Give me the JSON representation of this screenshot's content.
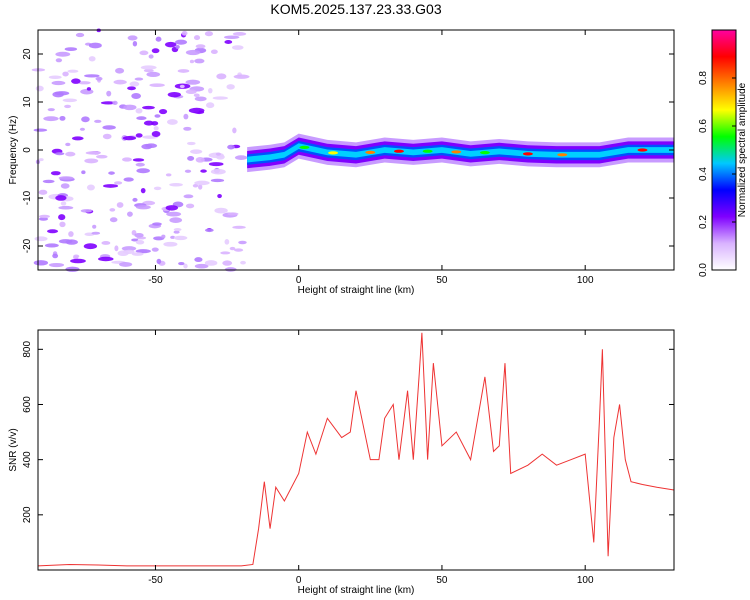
{
  "title": "KOM5.2025.137.23.33.G03",
  "chart_data": [
    {
      "type": "heatmap",
      "xlabel": "Height of straight line (km)",
      "ylabel": "Frequency (Hz)",
      "xlim": [
        -91,
        131
      ],
      "ylim": [
        -25,
        25
      ],
      "xticks": [
        -50,
        0,
        50,
        100
      ],
      "yticks": [
        -20,
        -10,
        0,
        10,
        20
      ],
      "colorbar": {
        "label": "Normalized spectral amplitude",
        "range": [
          0,
          1
        ],
        "ticks": [
          "0.0",
          "0.2",
          "0.4",
          "0.6",
          "0.8"
        ],
        "colors": [
          "#ffffff",
          "#d9b3ff",
          "#7f00ff",
          "#0000ff",
          "#00c8ff",
          "#00ff00",
          "#ffff00",
          "#ff8000",
          "#ff0000",
          "#ff00a0"
        ]
      },
      "ridge": {
        "x": [
          -18,
          -10,
          -5,
          0,
          10,
          20,
          30,
          40,
          50,
          60,
          70,
          80,
          90,
          100,
          105,
          110,
          115,
          120,
          131
        ],
        "y": [
          -2,
          -1.5,
          -1,
          0.8,
          -0.5,
          -1,
          0,
          -0.5,
          0,
          -0.8,
          -0.3,
          -0.8,
          -1,
          -1,
          -1,
          -0.5,
          0,
          0,
          0
        ]
      }
    },
    {
      "type": "line",
      "xlabel": "Height of straight line (km)",
      "ylabel": "SNR (v/v)",
      "xlim": [
        -91,
        131
      ],
      "ylim": [
        0,
        870
      ],
      "xticks": [
        -50,
        0,
        50,
        100
      ],
      "yticks": [
        200,
        400,
        600,
        800
      ],
      "color": "#ee3333",
      "x": [
        -91,
        -80,
        -70,
        -60,
        -50,
        -40,
        -30,
        -20,
        -16,
        -14,
        -12,
        -10,
        -8,
        -5,
        0,
        3,
        6,
        10,
        15,
        18,
        20,
        25,
        28,
        30,
        33,
        35,
        38,
        40,
        42,
        43,
        45,
        47,
        50,
        55,
        60,
        65,
        68,
        70,
        72,
        74,
        80,
        85,
        90,
        95,
        100,
        103,
        105,
        106,
        108,
        110,
        112,
        114,
        116,
        120,
        125,
        131
      ],
      "y": [
        15,
        20,
        18,
        15,
        15,
        15,
        15,
        15,
        20,
        150,
        320,
        150,
        300,
        250,
        350,
        500,
        420,
        550,
        480,
        500,
        650,
        400,
        400,
        550,
        600,
        400,
        650,
        400,
        700,
        860,
        400,
        750,
        450,
        500,
        400,
        700,
        430,
        450,
        750,
        350,
        380,
        420,
        380,
        400,
        420,
        100,
        550,
        800,
        50,
        480,
        600,
        400,
        320,
        310,
        300,
        290
      ]
    }
  ]
}
